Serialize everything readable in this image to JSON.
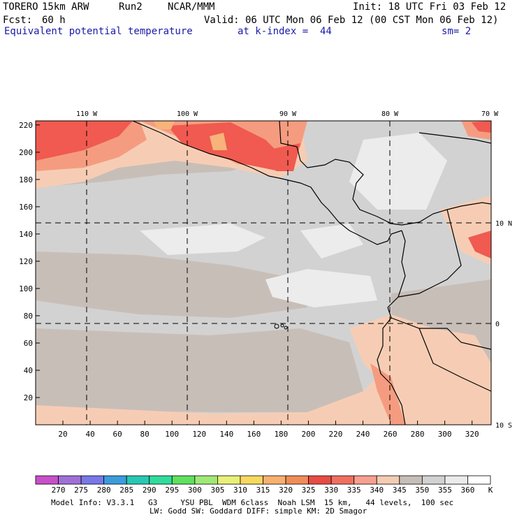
{
  "header": {
    "model": "TORERO",
    "resolution": "15km ARW",
    "run": "Run2",
    "org": "NCAR/MMM",
    "init": "Init: 18 UTC Fri 03 Feb 12",
    "fcst_label": "Fcst:",
    "fcst_value": "60 h",
    "valid": "Valid: 06 UTC Mon 06 Feb 12 (00 CST Mon 06 Feb 12)",
    "field": "Equivalent potential temperature",
    "level": "at k-index =  44",
    "smoothing": "sm= 2"
  },
  "map": {
    "lon_labels": [
      "110 W",
      "100 W",
      "90 W",
      "80 W",
      "70 W"
    ],
    "lat_labels": [
      "10 N",
      "0",
      "10 S"
    ],
    "x_ticks": [
      "20",
      "40",
      "60",
      "80",
      "100",
      "120",
      "140",
      "160",
      "180",
      "200",
      "220",
      "240",
      "260",
      "280",
      "300",
      "320"
    ],
    "y_ticks": [
      "220",
      "200",
      "180",
      "160",
      "140",
      "120",
      "100",
      "80",
      "60",
      "40",
      "20"
    ],
    "x_range": [
      0,
      334
    ],
    "y_range": [
      0,
      223
    ],
    "palette_bg": "#d7d7d7",
    "colors": {
      "cool_gray": "#d2d2d2",
      "tan_gray": "#c8beb8",
      "pale_gray": "#ececec",
      "peach": "#f6cdb4",
      "salmon": "#f59c80",
      "red": "#f05a50",
      "orange": "#f7b37a"
    }
  },
  "colorbar": {
    "labels": [
      "270",
      "275",
      "280",
      "285",
      "290",
      "295",
      "300",
      "305",
      "310",
      "315",
      "320",
      "325",
      "330",
      "335",
      "340",
      "345",
      "350",
      "355",
      "360"
    ],
    "unit": "K",
    "colors": [
      "#c850c8",
      "#a070d8",
      "#7878e8",
      "#3c9cdc",
      "#28c8b4",
      "#30dc9c",
      "#60e060",
      "#a0e878",
      "#e8f078",
      "#f8d860",
      "#f8b070",
      "#f08c58",
      "#e84c44",
      "#f07060",
      "#f8a090",
      "#f4ccb4",
      "#c8beb8",
      "#d2d2d2",
      "#ebebeb",
      "#ffffff"
    ]
  },
  "footer": {
    "line1": "Model Info: V3.3.1   G3     YSU PBL  WDM 6class  Noah LSM  15 km,   44 levels,  100 sec",
    "line2": "LW: Godd SW: Goddard DIFF: simple KM: 2D Smagor"
  }
}
